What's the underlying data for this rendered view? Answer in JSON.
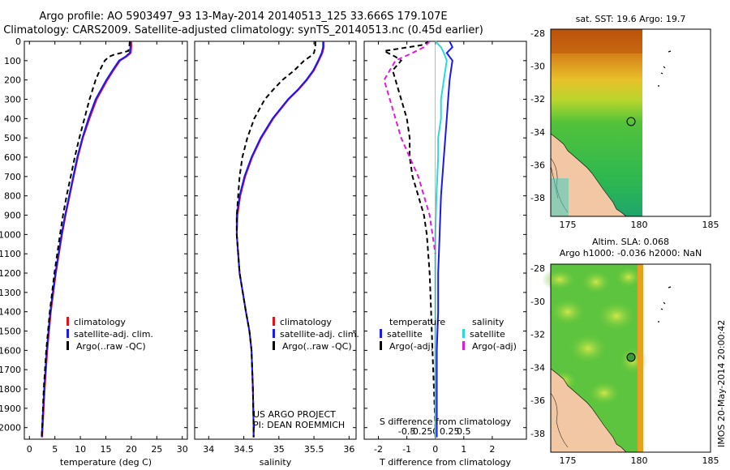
{
  "header": {
    "line1": "Argo profile: AO 5903497_93 13-May-2014 20140513_125 33.666S 179.107E",
    "line2": "Climatology: CARS2009. Satellite-adjusted climatology: synTS_20140513.nc (0.45d earlier)"
  },
  "colors": {
    "clim": "#e8101a",
    "sat": "#1a1aee",
    "argo": "#000000",
    "sal_sat": "#2bd9dc",
    "sal_argo": "#e018e0",
    "land": "#f2c8a4"
  },
  "chart_data": [
    {
      "type": "line",
      "xlabel": "temperature (deg C)",
      "ylabel": "",
      "xlim": [
        -1,
        31
      ],
      "ylim": [
        2060,
        0
      ],
      "xticks": [
        0,
        5,
        10,
        15,
        20,
        25,
        30
      ],
      "yticks": [
        0,
        100,
        200,
        300,
        400,
        500,
        600,
        700,
        800,
        900,
        1000,
        1100,
        1200,
        1300,
        1400,
        1500,
        1600,
        1700,
        1800,
        1900,
        2000
      ],
      "legend": [
        "climatology",
        "satellite-adj. clim.",
        "Argo(..raw -QC)"
      ],
      "series": [
        {
          "name": "climatology",
          "y": [
            0,
            30,
            60,
            80,
            100,
            150,
            200,
            300,
            400,
            500,
            600,
            700,
            800,
            900,
            1000,
            1200,
            1400,
            1600,
            1800,
            2000,
            2050
          ],
          "x": [
            20.0,
            20.0,
            19.9,
            19.0,
            17.8,
            16.5,
            15.3,
            13.2,
            11.8,
            10.5,
            9.5,
            8.7,
            7.9,
            7.1,
            6.4,
            5.2,
            4.2,
            3.5,
            3.0,
            2.6,
            2.5
          ]
        },
        {
          "name": "satellite-adj. clim.",
          "y": [
            0,
            30,
            60,
            80,
            100,
            150,
            200,
            300,
            400,
            500,
            600,
            700,
            800,
            900,
            1000,
            1200,
            1400,
            1600,
            1800,
            2000,
            2050
          ],
          "x": [
            19.9,
            19.8,
            19.7,
            18.8,
            17.6,
            16.3,
            15.1,
            13.0,
            11.6,
            10.4,
            9.4,
            8.6,
            7.8,
            7.0,
            6.3,
            5.1,
            4.1,
            3.4,
            2.9,
            2.5,
            2.4
          ]
        },
        {
          "name": "Argo(..raw -QC)",
          "y": [
            0,
            30,
            50,
            60,
            70,
            80,
            100,
            150,
            200,
            300,
            400,
            500,
            600,
            700,
            800,
            900,
            1000,
            1200,
            1400,
            1600,
            1800,
            2000,
            2050
          ],
          "x": [
            19.7,
            19.6,
            19.4,
            18.0,
            16.5,
            15.6,
            14.8,
            13.8,
            13.0,
            11.8,
            10.8,
            9.8,
            8.9,
            8.1,
            7.3,
            6.6,
            6.0,
            4.9,
            4.0,
            3.3,
            2.8,
            2.5,
            2.4
          ]
        }
      ]
    },
    {
      "type": "line",
      "xlabel": "salinity",
      "ylabel": "",
      "xlim": [
        33.8,
        36.1
      ],
      "ylim": [
        2060,
        0
      ],
      "xticks": [
        34,
        34.5,
        35,
        35.5,
        36
      ],
      "legend": [
        "climatology",
        "satellite-adj. clim.",
        "Argo(..raw -QC)"
      ],
      "annotation": [
        "US ARGO PROJECT",
        "PI: DEAN ROEMMICH"
      ],
      "series": [
        {
          "name": "climatology",
          "y": [
            0,
            30,
            60,
            100,
            150,
            200,
            250,
            300,
            400,
            500,
            600,
            700,
            800,
            900,
            1000,
            1200,
            1400,
            1500,
            1600,
            1800,
            2000,
            2050
          ],
          "x": [
            35.64,
            35.64,
            35.62,
            35.57,
            35.5,
            35.4,
            35.28,
            35.14,
            34.92,
            34.75,
            34.62,
            34.52,
            34.45,
            34.41,
            34.4,
            34.44,
            34.53,
            34.58,
            34.61,
            34.63,
            34.64,
            34.64
          ]
        },
        {
          "name": "satellite-adj. clim.",
          "y": [
            0,
            30,
            60,
            100,
            150,
            200,
            250,
            300,
            400,
            500,
            600,
            700,
            800,
            900,
            1000,
            1200,
            1400,
            1500,
            1600,
            1800,
            2000,
            2050
          ],
          "x": [
            35.63,
            35.63,
            35.61,
            35.56,
            35.49,
            35.39,
            35.27,
            35.13,
            34.91,
            34.74,
            34.61,
            34.51,
            34.44,
            34.4,
            34.4,
            34.44,
            34.53,
            34.58,
            34.61,
            34.63,
            34.64,
            34.64
          ]
        },
        {
          "name": "Argo(..raw -QC)",
          "y": [
            0,
            30,
            60,
            80,
            100,
            150,
            200,
            250,
            300,
            400,
            500,
            600,
            700,
            800,
            900,
            1000,
            1200,
            1400,
            1500,
            1600,
            1800,
            2000,
            2050
          ],
          "x": [
            35.52,
            35.52,
            35.5,
            35.44,
            35.36,
            35.22,
            35.05,
            34.92,
            34.8,
            34.65,
            34.55,
            34.48,
            34.44,
            34.42,
            34.4,
            34.4,
            34.44,
            34.53,
            34.58,
            34.61,
            34.63,
            34.64,
            34.64
          ]
        }
      ]
    },
    {
      "type": "line",
      "xlabel": "T difference from climatology",
      "xlabel2": "S difference from climatology",
      "ylabel": "",
      "xlim": [
        -2.5,
        3.2
      ],
      "ylim": [
        2060,
        0
      ],
      "xticks": [
        -2,
        -1,
        0,
        1,
        2
      ],
      "xticks_top": [
        -0.5,
        -0.25,
        0,
        0.25,
        0.5
      ],
      "legend_title_t": "temperature",
      "legend_title_s": "salinity",
      "legend": [
        "satellite",
        "Argo(-adj)",
        "satellite",
        "Argo(-adj)"
      ],
      "series": [
        {
          "name": "T satellite",
          "y": [
            0,
            30,
            60,
            100,
            150,
            200,
            300,
            400,
            500,
            600,
            800,
            1000,
            1200,
            1400,
            1600,
            1800,
            2000,
            2050
          ],
          "x": [
            0.5,
            0.6,
            0.4,
            0.6,
            0.55,
            0.5,
            0.45,
            0.4,
            0.35,
            0.3,
            0.2,
            0.15,
            0.1,
            0.1,
            0.05,
            0.05,
            0.05,
            0.05
          ]
        },
        {
          "name": "T Argo(-adj)",
          "y": [
            0,
            20,
            50,
            80,
            100,
            150,
            200,
            300,
            400,
            500,
            600,
            700,
            800,
            900,
            1000,
            1200,
            1400,
            1600,
            1800,
            2000,
            2050
          ],
          "x": [
            -0.2,
            -0.5,
            -1.8,
            -1.4,
            -1.2,
            -1.5,
            -1.4,
            -1.2,
            -1.0,
            -0.9,
            -0.9,
            -0.8,
            -0.6,
            -0.4,
            -0.3,
            -0.2,
            -0.15,
            -0.1,
            -0.05,
            0.0,
            0.0
          ]
        },
        {
          "name": "S satellite",
          "y": [
            0,
            30,
            60,
            100,
            200,
            300,
            400,
            500,
            600,
            800,
            1000,
            1200,
            1400,
            1600,
            1800,
            2000,
            2050
          ],
          "x": [
            0.0,
            0.1,
            0.15,
            0.2,
            0.15,
            0.1,
            0.1,
            0.05,
            0.05,
            0.02,
            0.0,
            0.0,
            0.0,
            0.0,
            0.0,
            0.0,
            0.0
          ]
        },
        {
          "name": "S Argo(-adj)",
          "y": [
            0,
            30,
            60,
            100,
            200,
            300,
            400,
            500,
            600,
            700,
            800,
            900,
            1000,
            1100
          ],
          "x": [
            -0.1,
            -0.2,
            -0.4,
            -0.7,
            -0.9,
            -0.8,
            -0.7,
            -0.6,
            -0.45,
            -0.3,
            -0.2,
            -0.1,
            -0.05,
            0.0
          ]
        }
      ]
    }
  ],
  "maps": [
    {
      "title": "sat. SST: 19.6 Argo: 19.7",
      "yticks": [
        "-28",
        "-30",
        "-32",
        "-34",
        "-36",
        "-38"
      ],
      "xticks": [
        "175",
        "180",
        "185"
      ]
    },
    {
      "title1": "Altim. SLA: 0.068",
      "title2": "Argo h1000: -0.036 h2000: NaN",
      "yticks": [
        "-28",
        "-30",
        "-32",
        "-34",
        "-36",
        "-38"
      ],
      "xticks": [
        "175",
        "180",
        "185"
      ]
    }
  ],
  "footer": {
    "stamp": "IMOS 20-May-2014 20:00:42"
  }
}
